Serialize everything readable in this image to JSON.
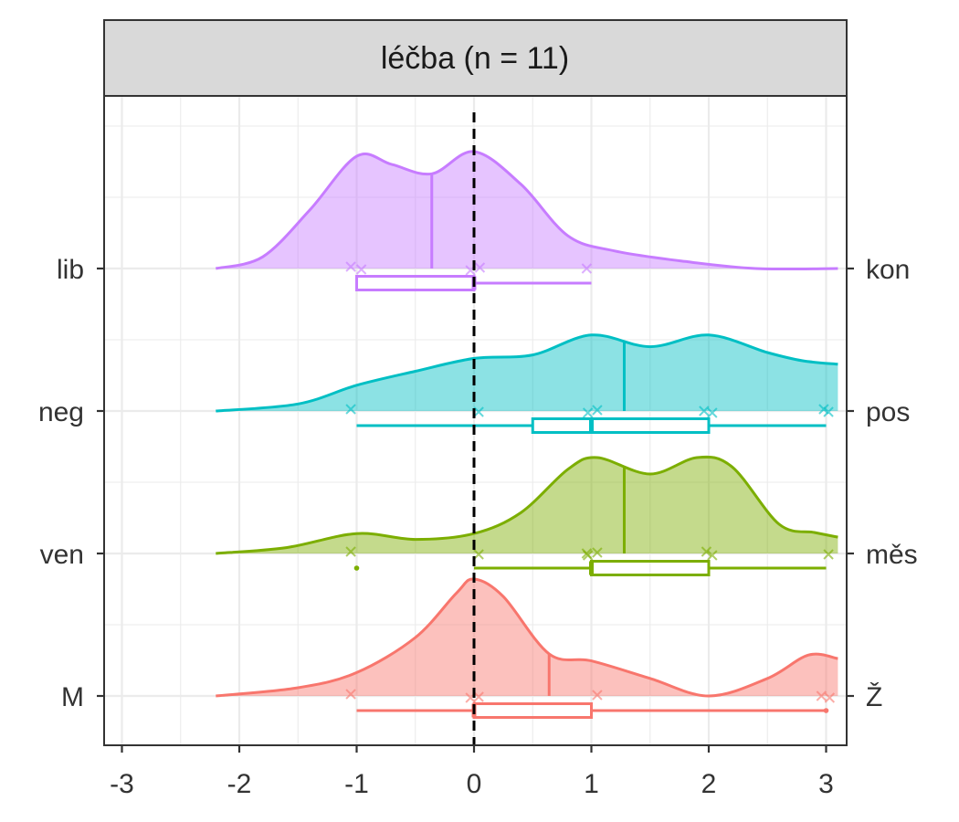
{
  "chart_data": {
    "type": "ridgeline",
    "panel_title": "léčba (n = 11)",
    "xlabel": "",
    "ylabel": "",
    "xlim": [
      -3.1,
      3.1
    ],
    "x_ticks": [
      "-3",
      "-2",
      "-1",
      "0",
      "1",
      "2",
      "3"
    ],
    "x_tick_values": [
      -3,
      -2,
      -1,
      0,
      1,
      2,
      3
    ],
    "reference_line_x": 0,
    "grid": true,
    "legend": "none",
    "series": [
      {
        "left_label": "M",
        "right_label": "Ž",
        "color": "#F8766D",
        "points": [
          -1,
          0,
          0,
          1,
          3,
          3
        ],
        "box": {
          "whisker_low": -1,
          "q1": 0,
          "median": 0,
          "q3": 1,
          "whisker_high": 3
        },
        "outliers": [
          3
        ],
        "mean": 0.64,
        "density": [
          [
            -2.2,
            0.0
          ],
          [
            -1.5,
            0.07
          ],
          [
            -1.0,
            0.2
          ],
          [
            -0.5,
            0.5
          ],
          [
            -0.15,
            0.88
          ],
          [
            0,
            1.0
          ],
          [
            0.25,
            0.85
          ],
          [
            0.64,
            0.36
          ],
          [
            1.0,
            0.3
          ],
          [
            1.5,
            0.15
          ],
          [
            2.0,
            0.0
          ],
          [
            2.5,
            0.15
          ],
          [
            2.85,
            0.35
          ],
          [
            3.1,
            0.32
          ]
        ]
      },
      {
        "left_label": "ven",
        "right_label": "měs",
        "color": "#7CAE00",
        "points": [
          -1,
          0,
          1,
          1,
          1,
          2,
          2,
          3
        ],
        "box": {
          "whisker_low": 0,
          "q1": 1,
          "median": 1,
          "q3": 2,
          "whisker_high": 3
        },
        "outliers": [
          -1
        ],
        "mean": 1.28,
        "density": [
          [
            -2.2,
            0.0
          ],
          [
            -1.6,
            0.05
          ],
          [
            -1.0,
            0.17
          ],
          [
            -0.5,
            0.12
          ],
          [
            0,
            0.17
          ],
          [
            0.4,
            0.35
          ],
          [
            0.8,
            0.72
          ],
          [
            1.05,
            0.82
          ],
          [
            1.5,
            0.68
          ],
          [
            1.9,
            0.82
          ],
          [
            2.2,
            0.74
          ],
          [
            2.6,
            0.25
          ],
          [
            2.9,
            0.18
          ],
          [
            3.1,
            0.14
          ]
        ]
      },
      {
        "left_label": "neg",
        "right_label": "pos",
        "color": "#00BFC4",
        "points": [
          -1,
          0,
          1,
          1,
          2,
          2,
          3,
          3
        ],
        "box": {
          "whisker_low": -1,
          "q1": 0.5,
          "median": 1,
          "q3": 2,
          "whisker_high": 3
        },
        "outliers": [],
        "mean": 1.28,
        "density": [
          [
            -2.2,
            0.0
          ],
          [
            -1.5,
            0.06
          ],
          [
            -1.0,
            0.22
          ],
          [
            -0.5,
            0.34
          ],
          [
            0,
            0.45
          ],
          [
            0.5,
            0.48
          ],
          [
            1.0,
            0.65
          ],
          [
            1.5,
            0.55
          ],
          [
            2.0,
            0.65
          ],
          [
            2.5,
            0.5
          ],
          [
            2.8,
            0.43
          ],
          [
            3.1,
            0.4
          ]
        ]
      },
      {
        "left_label": "lib",
        "right_label": "kon",
        "color": "#C77CFF",
        "points": [
          -1,
          -1,
          0,
          0,
          1
        ],
        "box": {
          "whisker_low": -1,
          "q1": -1,
          "median": 0,
          "q3": 0,
          "whisker_high": 1
        },
        "outliers": [],
        "mean": -0.36,
        "density": [
          [
            -2.2,
            0.0
          ],
          [
            -1.8,
            0.1
          ],
          [
            -1.4,
            0.5
          ],
          [
            -1.0,
            0.96
          ],
          [
            -0.7,
            0.89
          ],
          [
            -0.36,
            0.81
          ],
          [
            0,
            1.0
          ],
          [
            0.4,
            0.72
          ],
          [
            0.8,
            0.28
          ],
          [
            1.2,
            0.15
          ],
          [
            1.8,
            0.06
          ],
          [
            2.4,
            0.0
          ],
          [
            3.1,
            0.0
          ]
        ]
      }
    ]
  }
}
